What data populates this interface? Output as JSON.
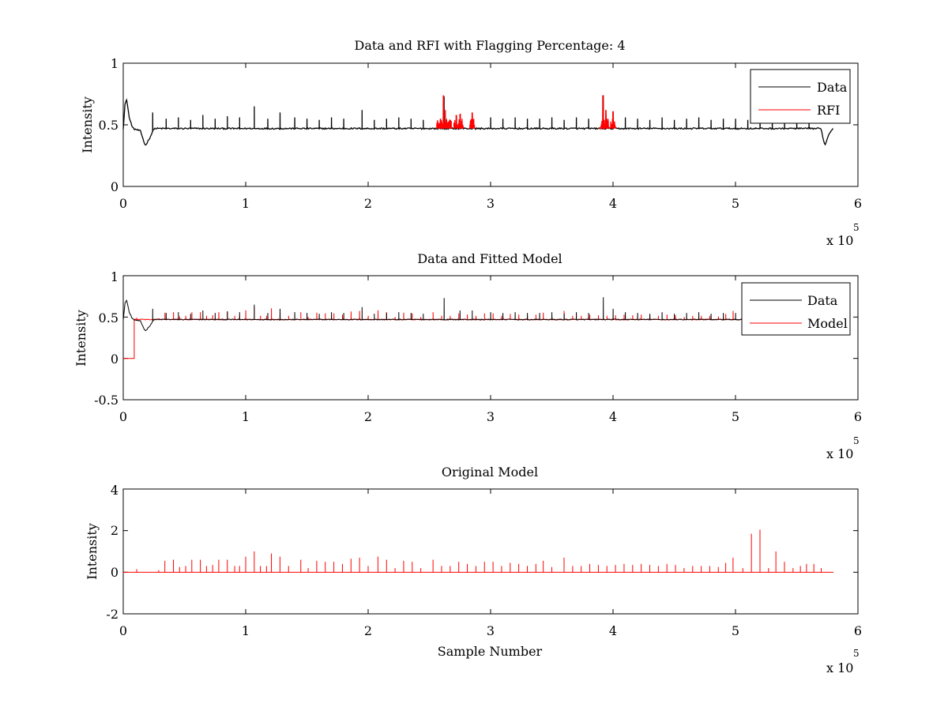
{
  "chart_data": [
    {
      "type": "line",
      "title": "Data and RFI with Flagging Percentage: 4",
      "xlabel": "",
      "ylabel": "Intensity",
      "xlim": [
        0,
        600000
      ],
      "ylim": [
        0,
        1
      ],
      "xticks": [
        "0",
        "1",
        "2",
        "3",
        "4",
        "5",
        "6"
      ],
      "yticks": [
        "0",
        "0.5",
        "1"
      ],
      "x_multiplier": "x 10",
      "x_multiplier_exp": "5",
      "legend_position": "top-right",
      "legend": [
        {
          "name": "Data",
          "color": "#000000"
        },
        {
          "name": "RFI",
          "color": "#ff0000"
        }
      ],
      "series": [
        {
          "name": "Data",
          "color": "#000000",
          "baseline": 0.47,
          "noise": 0.006,
          "segment_x": [
            0,
            580000
          ],
          "features": [
            {
              "x": 0,
              "y": 0.47
            },
            {
              "x": 1500,
              "y": 0.68
            },
            {
              "x": 3000,
              "y": 0.7
            },
            {
              "x": 5000,
              "y": 0.55
            },
            {
              "x": 8000,
              "y": 0.47
            },
            {
              "x": 14000,
              "y": 0.45
            },
            {
              "x": 18000,
              "y": 0.33
            },
            {
              "x": 22000,
              "y": 0.4
            },
            {
              "x": 25000,
              "y": 0.47
            },
            {
              "x": 570000,
              "y": 0.46
            },
            {
              "x": 573000,
              "y": 0.33
            },
            {
              "x": 576000,
              "y": 0.42
            },
            {
              "x": 580000,
              "y": 0.48
            }
          ],
          "spikes": [
            [
              24000,
              0.6
            ],
            [
              35000,
              0.55
            ],
            [
              45000,
              0.56
            ],
            [
              55000,
              0.54
            ],
            [
              65000,
              0.58
            ],
            [
              75000,
              0.55
            ],
            [
              85000,
              0.57
            ],
            [
              95000,
              0.56
            ],
            [
              107000,
              0.65
            ],
            [
              118000,
              0.55
            ],
            [
              128000,
              0.6
            ],
            [
              140000,
              0.56
            ],
            [
              150000,
              0.55
            ],
            [
              160000,
              0.54
            ],
            [
              170000,
              0.56
            ],
            [
              180000,
              0.55
            ],
            [
              195000,
              0.62
            ],
            [
              205000,
              0.54
            ],
            [
              215000,
              0.55
            ],
            [
              225000,
              0.56
            ],
            [
              235000,
              0.55
            ],
            [
              245000,
              0.54
            ],
            [
              262000,
              0.73
            ],
            [
              275000,
              0.58
            ],
            [
              285000,
              0.58
            ],
            [
              300000,
              0.56
            ],
            [
              310000,
              0.55
            ],
            [
              320000,
              0.56
            ],
            [
              330000,
              0.55
            ],
            [
              340000,
              0.55
            ],
            [
              350000,
              0.56
            ],
            [
              360000,
              0.54
            ],
            [
              370000,
              0.56
            ],
            [
              380000,
              0.55
            ],
            [
              392000,
              0.74
            ],
            [
              400000,
              0.6
            ],
            [
              410000,
              0.56
            ],
            [
              420000,
              0.55
            ],
            [
              430000,
              0.54
            ],
            [
              440000,
              0.56
            ],
            [
              450000,
              0.54
            ],
            [
              460000,
              0.55
            ],
            [
              470000,
              0.56
            ],
            [
              480000,
              0.54
            ],
            [
              490000,
              0.55
            ],
            [
              500000,
              0.55
            ],
            [
              510000,
              0.54
            ],
            [
              520000,
              0.56
            ],
            [
              530000,
              0.55
            ],
            [
              540000,
              0.54
            ],
            [
              550000,
              0.55
            ],
            [
              560000,
              0.54
            ]
          ]
        },
        {
          "name": "RFI",
          "color": "#ff0000",
          "clusters": [
            {
              "x": [
                256000,
                268000
              ],
              "peaks": [
                [
                  261500,
                  0.74
                ],
                [
                  263000,
                  0.62
                ],
                [
                  259000,
                  0.55
                ]
              ],
              "floor": 0.5
            },
            {
              "x": [
                270000,
                278000
              ],
              "peaks": [
                [
                  272000,
                  0.58
                ],
                [
                  275000,
                  0.59
                ]
              ],
              "floor": 0.5
            },
            {
              "x": [
                283000,
                287000
              ],
              "peaks": [
                [
                  285000,
                  0.6
                ]
              ],
              "floor": 0.5
            },
            {
              "x": [
                389000,
                397000
              ],
              "peaks": [
                [
                  391500,
                  0.74
                ],
                [
                  394000,
                  0.62
                ]
              ],
              "floor": 0.5
            },
            {
              "x": [
                398000,
                402000
              ],
              "peaks": [
                [
                  400000,
                  0.61
                ]
              ],
              "floor": 0.5
            }
          ]
        }
      ]
    },
    {
      "type": "line",
      "title": "Data and Fitted Model",
      "xlabel": "",
      "ylabel": "Intensity",
      "xlim": [
        0,
        600000
      ],
      "ylim": [
        -0.5,
        1
      ],
      "xticks": [
        "0",
        "1",
        "2",
        "3",
        "4",
        "5",
        "6"
      ],
      "yticks": [
        "-0.5",
        "0",
        "0.5",
        "1"
      ],
      "x_multiplier": "x 10",
      "x_multiplier_exp": "5",
      "legend_position": "top-right",
      "legend": [
        {
          "name": "Data",
          "color": "#000000"
        },
        {
          "name": "Model",
          "color": "#ff0000"
        }
      ],
      "series": [
        {
          "name": "Model",
          "color": "#ff0000",
          "baseline": 0.47,
          "step": [
            [
              0,
              0
            ],
            [
              9000,
              0
            ],
            [
              9000,
              0.47
            ]
          ],
          "segment_x": [
            9000,
            580000
          ]
        },
        {
          "name": "Data",
          "color": "#000000",
          "reuse_from_panel": 0
        }
      ]
    },
    {
      "type": "line",
      "title": "Original Model",
      "xlabel": "Sample Number",
      "ylabel": "Intensity",
      "xlim": [
        0,
        600000
      ],
      "ylim": [
        -2,
        4
      ],
      "xticks": [
        "0",
        "1",
        "2",
        "3",
        "4",
        "5",
        "6"
      ],
      "yticks": [
        "-2",
        "0",
        "2",
        "4"
      ],
      "x_multiplier": "x 10",
      "x_multiplier_exp": "5",
      "series": [
        {
          "name": "Model",
          "color": "#ff0000",
          "baseline": 0.0,
          "segment_x": [
            0,
            580000
          ],
          "spikes": [
            [
              11000,
              0.15
            ],
            [
              29000,
              0.1
            ],
            [
              34000,
              0.55
            ],
            [
              41000,
              0.6
            ],
            [
              46000,
              0.25
            ],
            [
              51000,
              0.3
            ],
            [
              56000,
              0.6
            ],
            [
              63000,
              0.6
            ],
            [
              68000,
              0.3
            ],
            [
              73000,
              0.35
            ],
            [
              78000,
              0.6
            ],
            [
              85000,
              0.6
            ],
            [
              91000,
              0.3
            ],
            [
              95000,
              0.3
            ],
            [
              100000,
              0.75
            ],
            [
              107000,
              1.0
            ],
            [
              112000,
              0.3
            ],
            [
              117000,
              0.3
            ],
            [
              121000,
              0.9
            ],
            [
              128000,
              0.75
            ],
            [
              135000,
              0.3
            ],
            [
              145000,
              0.6
            ],
            [
              151000,
              0.2
            ],
            [
              158000,
              0.55
            ],
            [
              165000,
              0.5
            ],
            [
              172000,
              0.5
            ],
            [
              179000,
              0.4
            ],
            [
              186000,
              0.65
            ],
            [
              193000,
              0.7
            ],
            [
              200000,
              0.3
            ],
            [
              208000,
              0.75
            ],
            [
              215000,
              0.6
            ],
            [
              222000,
              0.2
            ],
            [
              229000,
              0.55
            ],
            [
              236000,
              0.5
            ],
            [
              243000,
              0.2
            ],
            [
              253000,
              0.6
            ],
            [
              260000,
              0.3
            ],
            [
              267000,
              0.3
            ],
            [
              274000,
              0.5
            ],
            [
              281000,
              0.4
            ],
            [
              288000,
              0.3
            ],
            [
              295000,
              0.5
            ],
            [
              302000,
              0.5
            ],
            [
              309000,
              0.3
            ],
            [
              316000,
              0.45
            ],
            [
              323000,
              0.4
            ],
            [
              330000,
              0.3
            ],
            [
              337000,
              0.4
            ],
            [
              343000,
              0.55
            ],
            [
              350000,
              0.25
            ],
            [
              360000,
              0.7
            ],
            [
              367000,
              0.3
            ],
            [
              374000,
              0.3
            ],
            [
              381000,
              0.4
            ],
            [
              388000,
              0.35
            ],
            [
              395000,
              0.3
            ],
            [
              402000,
              0.35
            ],
            [
              409000,
              0.4
            ],
            [
              416000,
              0.35
            ],
            [
              423000,
              0.4
            ],
            [
              430000,
              0.35
            ],
            [
              437000,
              0.3
            ],
            [
              444000,
              0.4
            ],
            [
              451000,
              0.35
            ],
            [
              458000,
              0.2
            ],
            [
              465000,
              0.3
            ],
            [
              472000,
              0.3
            ],
            [
              479000,
              0.3
            ],
            [
              486000,
              0.25
            ],
            [
              492000,
              0.45
            ],
            [
              498000,
              0.7
            ],
            [
              506000,
              0.2
            ],
            [
              513000,
              1.85
            ],
            [
              520000,
              2.05
            ],
            [
              527000,
              0.2
            ],
            [
              533000,
              1.0
            ],
            [
              540000,
              0.5
            ],
            [
              547000,
              0.2
            ],
            [
              553000,
              0.3
            ],
            [
              558000,
              0.4
            ],
            [
              564000,
              0.4
            ],
            [
              570000,
              0.2
            ]
          ]
        }
      ]
    }
  ]
}
